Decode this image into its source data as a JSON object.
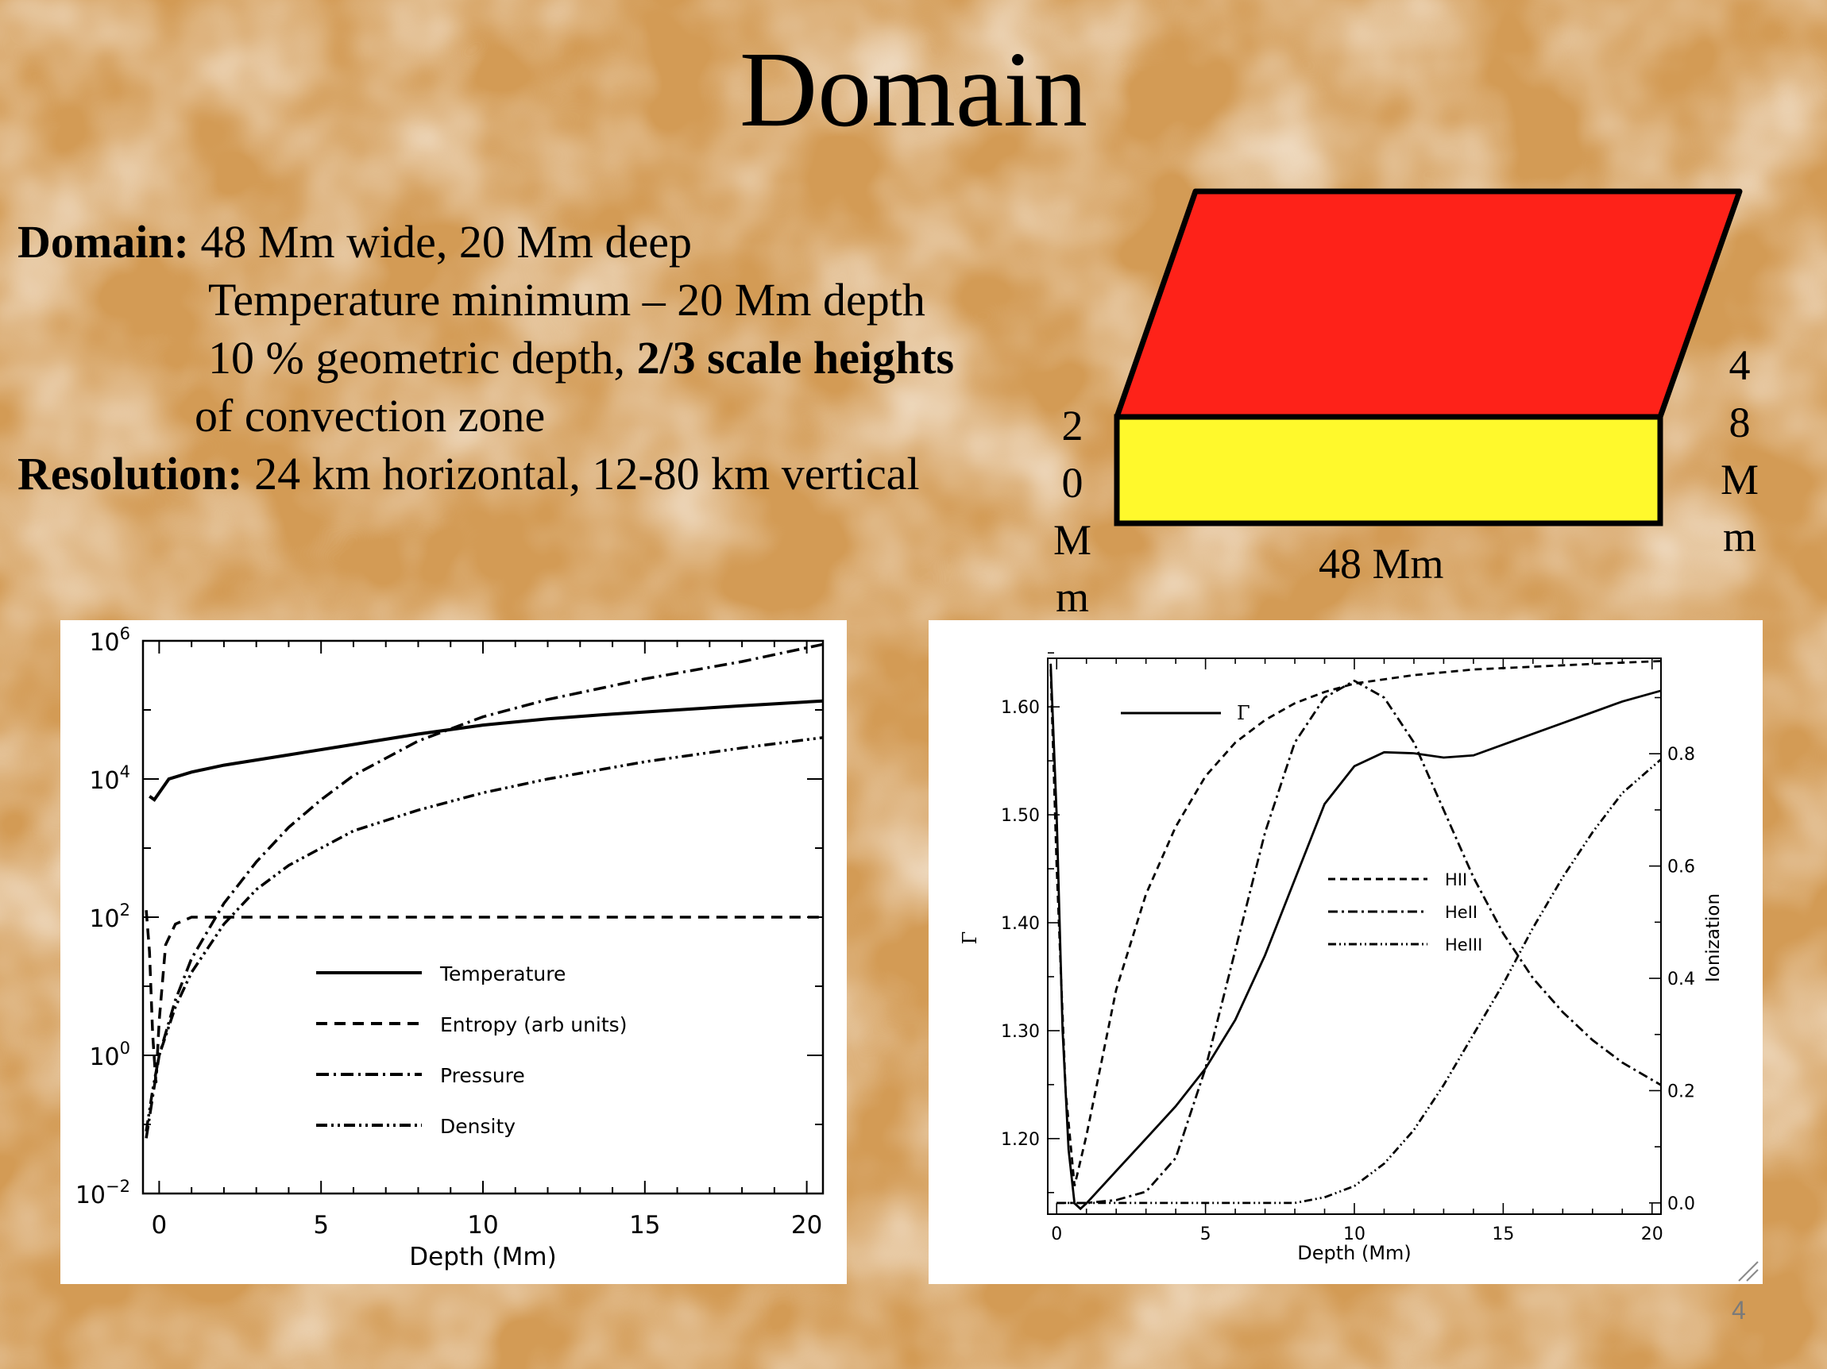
{
  "slide": {
    "title": "Domain",
    "page_number": "4",
    "colors": {
      "background": "#d9a35c",
      "box_top": "#fe2219",
      "box_front": "#fff92c"
    }
  },
  "text": {
    "line1_bold": "Domain:",
    "line1_rest": " 48 Mm wide, 20 Mm deep",
    "line2": "Temperature minimum – 20 Mm depth",
    "line3_pre": "10 % geometric depth, ",
    "line3_bold": "2/3 scale heights",
    "line4": "of convection zone",
    "line5_bold": "Resolution:",
    "line5_rest": " 24 km horizontal, 12-80 km vertical"
  },
  "box": {
    "width_label": "48 Mm",
    "depth_label": "2\n0\nM\nm",
    "length_label": "4\n8\nM\nm"
  },
  "chart_data": [
    {
      "type": "line",
      "xlabel": "Depth (Mm)",
      "ylabel": "",
      "xlim": [
        -0.5,
        20.5
      ],
      "ylim": [
        -2,
        6
      ],
      "yscale": "log",
      "x_ticks": [
        "0",
        "5",
        "10",
        "15",
        "20"
      ],
      "y_ticks": [
        {
          "base": "10",
          "exp": "6"
        },
        {
          "base": "10",
          "exp": "4"
        },
        {
          "base": "10",
          "exp": "2"
        },
        {
          "base": "10",
          "exp": "0"
        },
        {
          "base": "10",
          "exp": "−2"
        }
      ],
      "legend_position": "lower-middle",
      "series": [
        {
          "name": "Temperature",
          "style": "solid",
          "x": [
            -0.3,
            -0.15,
            0,
            0.3,
            1,
            2,
            4,
            6,
            8,
            10,
            12,
            14,
            16,
            18,
            20.5
          ],
          "y": [
            3.75,
            3.7,
            3.8,
            4.0,
            4.1,
            4.2,
            4.35,
            4.5,
            4.65,
            4.78,
            4.87,
            4.94,
            5.0,
            5.06,
            5.13
          ]
        },
        {
          "name": "Entropy (arb units)",
          "style": "dashed",
          "x": [
            -0.4,
            -0.3,
            -0.2,
            -0.1,
            0,
            0.2,
            0.5,
            1,
            2,
            5,
            10,
            15,
            20.5
          ],
          "y": [
            2.1,
            1.5,
            0.3,
            -0.4,
            0.5,
            1.6,
            1.9,
            2.0,
            2.0,
            2.0,
            2.0,
            2.0,
            2.0
          ]
        },
        {
          "name": "Pressure",
          "style": "dash-dot",
          "x": [
            -0.4,
            -0.2,
            0,
            0.5,
            1,
            2,
            3,
            4,
            5,
            6,
            8,
            10,
            12,
            15,
            18,
            20.5
          ],
          "y": [
            -1.2,
            -0.6,
            0.0,
            0.8,
            1.4,
            2.2,
            2.8,
            3.3,
            3.7,
            4.05,
            4.55,
            4.9,
            5.15,
            5.45,
            5.7,
            5.95
          ]
        },
        {
          "name": "Density",
          "style": "dash-dot-dot",
          "x": [
            -0.4,
            -0.2,
            0,
            0.5,
            1,
            2,
            3,
            4,
            5,
            6,
            8,
            10,
            12,
            15,
            18,
            20.5
          ],
          "y": [
            -1.1,
            -0.5,
            0.0,
            0.7,
            1.2,
            1.9,
            2.4,
            2.75,
            3.0,
            3.25,
            3.55,
            3.8,
            4.0,
            4.25,
            4.45,
            4.6
          ]
        }
      ]
    },
    {
      "type": "line",
      "xlabel": "Depth (Mm)",
      "ylabel": "Γ",
      "ylabel_right": "Ionization",
      "xlim": [
        -0.3,
        20.3
      ],
      "ylim": [
        1.13,
        1.645
      ],
      "ylim_right": [
        -0.02,
        0.97
      ],
      "x_ticks": [
        "0",
        "5",
        "10",
        "15",
        "20"
      ],
      "y_ticks": [
        "1.60",
        "1.50",
        "1.40",
        "1.30",
        "1.20"
      ],
      "y_ticks_right": [
        "0.8",
        "0.6",
        "0.4",
        "0.2",
        "0.0"
      ],
      "series": [
        {
          "name": "Γ",
          "axis": "left",
          "style": "solid",
          "x": [
            -0.2,
            0,
            0.2,
            0.4,
            0.6,
            0.8,
            1,
            2,
            3,
            4,
            5,
            6,
            7,
            8,
            9,
            10,
            11,
            12,
            13,
            14,
            15,
            16,
            17,
            18,
            19,
            20.3
          ],
          "y": [
            1.64,
            1.5,
            1.3,
            1.19,
            1.14,
            1.135,
            1.14,
            1.17,
            1.2,
            1.23,
            1.265,
            1.31,
            1.37,
            1.44,
            1.51,
            1.545,
            1.558,
            1.557,
            1.553,
            1.555,
            1.565,
            1.575,
            1.585,
            1.595,
            1.605,
            1.615
          ]
        },
        {
          "name": "HII",
          "axis": "right",
          "style": "dashed",
          "x": [
            -0.2,
            0,
            0.3,
            0.6,
            1,
            1.5,
            2,
            3,
            4,
            5,
            6,
            7,
            8,
            9,
            10,
            12,
            14,
            16,
            18,
            20.3
          ],
          "y": [
            0.95,
            0.6,
            0.2,
            0.03,
            0.12,
            0.25,
            0.38,
            0.55,
            0.67,
            0.76,
            0.82,
            0.86,
            0.89,
            0.91,
            0.925,
            0.94,
            0.95,
            0.955,
            0.96,
            0.965
          ]
        },
        {
          "name": "HeII",
          "axis": "right",
          "style": "dash-dot",
          "x": [
            0,
            1,
            2,
            3,
            4,
            5,
            6,
            7,
            8,
            9,
            10,
            11,
            12,
            13,
            14,
            15,
            16,
            17,
            18,
            19,
            20.3
          ],
          "y": [
            0.0,
            0.0,
            0.005,
            0.02,
            0.08,
            0.24,
            0.45,
            0.66,
            0.82,
            0.9,
            0.93,
            0.9,
            0.82,
            0.7,
            0.58,
            0.48,
            0.4,
            0.34,
            0.29,
            0.25,
            0.21
          ]
        },
        {
          "name": "HeIII",
          "axis": "right",
          "style": "dash-dot-dot",
          "x": [
            0,
            2,
            4,
            6,
            8,
            9,
            10,
            11,
            12,
            13,
            14,
            15,
            16,
            17,
            18,
            19,
            20.3
          ],
          "y": [
            0.0,
            0.0,
            0.0,
            0.0,
            0.0,
            0.01,
            0.03,
            0.07,
            0.13,
            0.21,
            0.3,
            0.39,
            0.49,
            0.58,
            0.66,
            0.73,
            0.79
          ]
        }
      ]
    }
  ]
}
